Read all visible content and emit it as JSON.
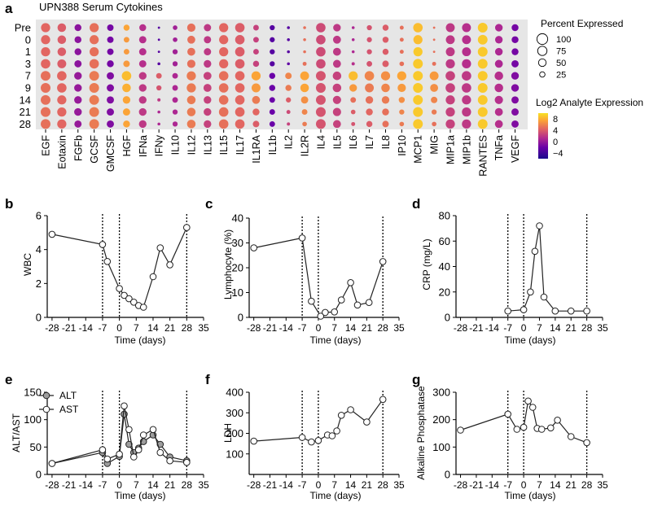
{
  "chart_data": [
    {
      "panel": "a",
      "type": "bubble-heatmap",
      "title": "UPN388 Serum Cytokines",
      "rows": [
        "Pre",
        "0",
        "1",
        "3",
        "7",
        "9",
        "14",
        "21",
        "28"
      ],
      "columns": [
        "EGF",
        "Eotaxin",
        "FGFb",
        "GCSF",
        "GMCSF",
        "HGF",
        "IFNa",
        "IFNy",
        "IL10",
        "IL12",
        "IL13",
        "IL15",
        "IL17",
        "IL1RA",
        "IL1b",
        "IL2",
        "IL2R",
        "IL4",
        "IL5",
        "IL6",
        "IL7",
        "IL8",
        "IP10",
        "MCP1",
        "MIG",
        "MIP1a",
        "MIP1b",
        "RANTES",
        "TNFa",
        "VEGF"
      ],
      "size_legend": {
        "title": "Percent Expressed",
        "values": [
          100,
          75,
          50,
          25
        ]
      },
      "color_legend": {
        "title": "Log2 Analyte Expression",
        "ticks": [
          8,
          4,
          0,
          -4
        ],
        "range": [
          -6,
          10
        ]
      },
      "size_matrix": [
        [
          80,
          70,
          45,
          80,
          40,
          35,
          45,
          5,
          20,
          65,
          50,
          80,
          85,
          30,
          25,
          8,
          8,
          85,
          55,
          8,
          25,
          35,
          15,
          85,
          5,
          75,
          75,
          90,
          55,
          45
        ],
        [
          80,
          70,
          45,
          80,
          40,
          30,
          50,
          5,
          20,
          60,
          50,
          80,
          85,
          30,
          25,
          8,
          8,
          85,
          60,
          8,
          25,
          35,
          15,
          80,
          5,
          75,
          75,
          90,
          55,
          45
        ],
        [
          80,
          70,
          45,
          80,
          40,
          30,
          50,
          5,
          25,
          60,
          50,
          80,
          85,
          30,
          25,
          8,
          8,
          85,
          60,
          8,
          25,
          35,
          15,
          80,
          5,
          75,
          75,
          90,
          55,
          45
        ],
        [
          85,
          75,
          50,
          85,
          45,
          40,
          50,
          8,
          25,
          65,
          55,
          80,
          85,
          35,
          25,
          8,
          15,
          85,
          60,
          10,
          30,
          40,
          20,
          90,
          15,
          80,
          80,
          90,
          60,
          50
        ],
        [
          90,
          85,
          55,
          90,
          50,
          85,
          55,
          30,
          30,
          80,
          60,
          85,
          85,
          80,
          35,
          40,
          75,
          90,
          70,
          80,
          85,
          80,
          80,
          90,
          75,
          85,
          85,
          90,
          70,
          55
        ],
        [
          90,
          85,
          55,
          90,
          50,
          70,
          55,
          25,
          30,
          80,
          60,
          85,
          85,
          75,
          35,
          35,
          70,
          90,
          70,
          55,
          75,
          70,
          65,
          90,
          60,
          85,
          85,
          90,
          70,
          55
        ],
        [
          90,
          80,
          55,
          90,
          50,
          55,
          55,
          10,
          30,
          70,
          55,
          85,
          85,
          60,
          30,
          25,
          50,
          90,
          65,
          30,
          55,
          55,
          35,
          90,
          40,
          80,
          80,
          90,
          65,
          50
        ],
        [
          90,
          80,
          55,
          90,
          50,
          50,
          55,
          8,
          25,
          70,
          55,
          85,
          85,
          45,
          30,
          15,
          30,
          90,
          65,
          20,
          45,
          45,
          25,
          90,
          25,
          80,
          80,
          90,
          60,
          50
        ],
        [
          90,
          80,
          50,
          90,
          50,
          45,
          55,
          8,
          25,
          70,
          55,
          85,
          85,
          40,
          30,
          10,
          20,
          90,
          60,
          15,
          35,
          40,
          20,
          90,
          20,
          80,
          80,
          90,
          60,
          50
        ]
      ],
      "color_matrix": [
        [
          4.5,
          4.0,
          -0.5,
          5.0,
          -1.5,
          7.5,
          1.5,
          -3.0,
          0.5,
          5.0,
          2.0,
          4.5,
          4.0,
          2.5,
          -3.0,
          -3.0,
          5.0,
          3.0,
          2.0,
          1.0,
          3.5,
          4.0,
          5.0,
          8.5,
          5.0,
          2.0,
          1.5,
          9.0,
          1.0,
          -1.5
        ],
        [
          4.5,
          4.0,
          -0.5,
          5.0,
          -1.5,
          7.0,
          1.5,
          -3.0,
          0.5,
          5.0,
          2.0,
          4.5,
          4.0,
          2.5,
          -3.0,
          -3.0,
          5.0,
          3.0,
          2.0,
          1.0,
          3.5,
          4.0,
          5.0,
          8.5,
          5.0,
          2.0,
          1.5,
          9.0,
          1.0,
          -1.5
        ],
        [
          4.5,
          4.0,
          -0.5,
          5.0,
          -1.5,
          7.0,
          1.5,
          -3.0,
          0.5,
          5.0,
          2.0,
          4.5,
          4.0,
          2.5,
          -3.0,
          -3.0,
          5.0,
          3.0,
          2.0,
          1.0,
          3.5,
          4.0,
          5.0,
          9.0,
          5.0,
          2.0,
          1.5,
          9.0,
          1.0,
          -1.5
        ],
        [
          4.5,
          4.0,
          -0.5,
          5.0,
          -1.5,
          7.0,
          1.5,
          -3.0,
          0.5,
          5.0,
          2.0,
          4.5,
          4.0,
          2.5,
          -3.0,
          -2.5,
          5.0,
          3.0,
          2.0,
          1.5,
          3.5,
          4.0,
          5.0,
          9.0,
          5.0,
          2.0,
          1.5,
          9.0,
          1.0,
          -1.5
        ],
        [
          5.0,
          4.5,
          0.0,
          5.5,
          -1.0,
          8.5,
          2.0,
          4.0,
          1.0,
          5.5,
          2.5,
          5.0,
          4.5,
          7.5,
          -2.0,
          6.0,
          7.5,
          3.5,
          2.5,
          8.5,
          6.0,
          6.5,
          7.5,
          9.0,
          7.0,
          2.5,
          2.0,
          9.0,
          1.5,
          -1.0
        ],
        [
          5.0,
          4.5,
          0.0,
          5.5,
          -1.0,
          8.0,
          2.0,
          3.5,
          1.0,
          5.5,
          2.5,
          5.0,
          4.5,
          7.0,
          -2.0,
          5.5,
          7.5,
          3.5,
          2.5,
          7.0,
          5.5,
          6.0,
          7.0,
          9.0,
          6.5,
          2.5,
          2.0,
          9.0,
          1.5,
          -1.0
        ],
        [
          5.0,
          4.5,
          0.0,
          5.5,
          -1.0,
          7.5,
          2.0,
          2.0,
          1.0,
          5.5,
          2.5,
          5.0,
          4.5,
          5.5,
          -2.0,
          4.0,
          6.5,
          3.5,
          2.5,
          5.0,
          5.0,
          5.5,
          6.5,
          9.0,
          6.0,
          2.5,
          2.0,
          9.0,
          1.5,
          -1.0
        ],
        [
          5.0,
          4.5,
          0.0,
          5.5,
          -1.0,
          7.5,
          2.0,
          1.0,
          1.0,
          5.5,
          2.5,
          5.0,
          4.5,
          4.5,
          -2.0,
          3.0,
          6.0,
          3.5,
          2.5,
          4.0,
          4.5,
          5.0,
          6.0,
          9.0,
          5.5,
          2.5,
          2.0,
          9.0,
          1.5,
          -1.0
        ],
        [
          5.0,
          4.5,
          0.0,
          5.5,
          -1.0,
          7.5,
          2.0,
          1.0,
          1.0,
          5.5,
          2.5,
          5.0,
          4.5,
          4.0,
          -2.0,
          2.5,
          5.5,
          3.5,
          2.5,
          3.5,
          4.0,
          5.0,
          5.5,
          9.0,
          5.0,
          2.5,
          2.0,
          9.0,
          1.5,
          -1.0
        ]
      ]
    },
    {
      "panel": "b",
      "type": "line",
      "xlabel": "Time (days)",
      "ylabel": "WBC",
      "xlim": [
        -30,
        35
      ],
      "ylim": [
        0,
        6
      ],
      "yticks": [
        0,
        2,
        4,
        6
      ],
      "dashed_x": [
        -7,
        0,
        28
      ],
      "series": [
        {
          "name": "WBC",
          "x": [
            -28,
            -7,
            -5,
            0,
            2,
            4,
            6,
            8,
            10,
            14,
            17,
            21,
            28
          ],
          "y": [
            4.9,
            4.3,
            3.3,
            1.7,
            1.3,
            1.1,
            0.9,
            0.7,
            0.6,
            2.4,
            4.1,
            3.1,
            5.3
          ]
        }
      ]
    },
    {
      "panel": "c",
      "type": "line",
      "xlabel": "Time (days)",
      "ylabel": "Lymphocyte (%)",
      "xlim": [
        -30,
        35
      ],
      "ylim": [
        0,
        40
      ],
      "yticks": [
        0,
        10,
        20,
        30,
        40
      ],
      "dashed_x": [
        -7,
        0,
        28
      ],
      "series": [
        {
          "name": "Lymphocyte (%)",
          "x": [
            -28,
            -7,
            -3,
            1,
            3,
            7,
            10,
            14,
            17,
            22,
            28
          ],
          "y": [
            28,
            32,
            6.5,
            0.5,
            2,
            2.2,
            7,
            14,
            5,
            6,
            22.5
          ]
        }
      ]
    },
    {
      "panel": "d",
      "type": "line",
      "xlabel": "Time (days)",
      "ylabel": "CRP (mg/L)",
      "xlim": [
        -30,
        35
      ],
      "ylim": [
        0,
        80
      ],
      "yticks": [
        0,
        20,
        40,
        60,
        80
      ],
      "dashed_x": [
        -7,
        0,
        28
      ],
      "series": [
        {
          "name": "CRP (mg/L)",
          "x": [
            -7,
            0,
            3,
            5,
            7,
            9,
            14,
            21,
            28
          ],
          "y": [
            5,
            6,
            20,
            52,
            72,
            16,
            5,
            5,
            5
          ]
        }
      ]
    },
    {
      "panel": "e",
      "type": "line",
      "xlabel": "Time (days)",
      "ylabel": "ALT/AST",
      "xlim": [
        -30,
        35
      ],
      "ylim": [
        0,
        150
      ],
      "yticks": [
        0,
        50,
        100,
        150
      ],
      "dashed_x": [
        -7,
        0,
        28
      ],
      "legend": [
        "ALT",
        "AST"
      ],
      "series": [
        {
          "name": "ALT",
          "x": [
            -28,
            -7,
            -5,
            0,
            2,
            4,
            6,
            8,
            10,
            14,
            17,
            21,
            28
          ],
          "y": [
            20,
            40,
            20,
            33,
            110,
            55,
            40,
            48,
            60,
            72,
            55,
            32,
            25
          ]
        },
        {
          "name": "AST",
          "x": [
            -28,
            -7,
            -5,
            0,
            2,
            4,
            6,
            8,
            10,
            14,
            17,
            21,
            28
          ],
          "y": [
            20,
            45,
            28,
            37,
            125,
            82,
            32,
            45,
            72,
            82,
            40,
            25,
            22
          ]
        }
      ]
    },
    {
      "panel": "f",
      "type": "line",
      "xlabel": "Time (days)",
      "ylabel": "LDH",
      "xlim": [
        -30,
        35
      ],
      "ylim": [
        0,
        400
      ],
      "yticks": [
        100,
        200,
        300,
        400
      ],
      "dashed_x": [
        -7,
        0,
        28
      ],
      "series": [
        {
          "name": "LDH",
          "x": [
            -28,
            -7,
            -3,
            0,
            4,
            6,
            8,
            10,
            14,
            21,
            28
          ],
          "y": [
            162,
            180,
            158,
            165,
            192,
            188,
            212,
            288,
            315,
            255,
            365
          ]
        }
      ]
    },
    {
      "panel": "g",
      "type": "line",
      "xlabel": "Time (days)",
      "ylabel": "Alkaline Phosphatase",
      "xlim": [
        -30,
        35
      ],
      "ylim": [
        0,
        300
      ],
      "yticks": [
        0,
        100,
        200,
        300
      ],
      "dashed_x": [
        -7,
        0,
        28
      ],
      "series": [
        {
          "name": "Alkaline Phosphatase",
          "x": [
            -28,
            -7,
            -3,
            0,
            2,
            4,
            6,
            8,
            12,
            15,
            21,
            28
          ],
          "y": [
            162,
            220,
            165,
            172,
            268,
            245,
            168,
            165,
            170,
            198,
            138,
            116
          ]
        }
      ]
    }
  ]
}
